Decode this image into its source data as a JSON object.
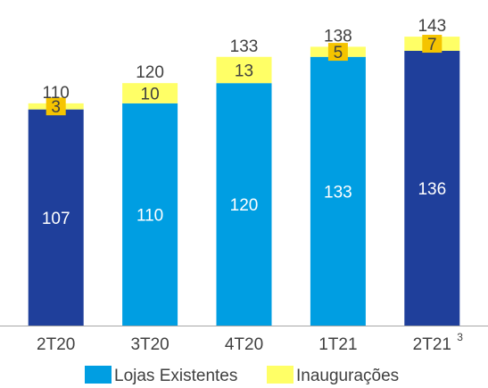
{
  "chart_data": {
    "type": "bar",
    "stacked": true,
    "categories": [
      "2T20",
      "3T20",
      "4T20",
      "1T21",
      "2T21"
    ],
    "category_footnotes": [
      "",
      "",
      "",
      "",
      "3"
    ],
    "series": [
      {
        "name": "Lojas Existentes",
        "values": [
          107,
          110,
          120,
          133,
          136
        ],
        "colors": [
          "#1f3f9b",
          "#009ee2",
          "#009ee2",
          "#009ee2",
          "#1f3f9b"
        ],
        "label_colors": [
          "#ffffff",
          "#ffffff",
          "#ffffff",
          "#ffffff",
          "#ffffff"
        ]
      },
      {
        "name": "Inaugurações",
        "values": [
          3,
          10,
          13,
          5,
          7
        ],
        "color": "#ffff66",
        "label_colors": [
          "#404040",
          "#404040",
          "#404040",
          "#404040",
          "#404040"
        ],
        "label_box": [
          true,
          false,
          false,
          true,
          true
        ]
      }
    ],
    "totals": [
      110,
      120,
      133,
      138,
      143
    ],
    "legend": [
      {
        "name": "Lojas Existentes",
        "color": "#009ee2"
      },
      {
        "name": "Inaugurações",
        "color": "#ffff66"
      }
    ],
    "legend_position": "bottom",
    "ylim": [
      0,
      152
    ],
    "grid": false,
    "axis_color": "#a6a6a6",
    "label_box_color": "#f5c400"
  }
}
